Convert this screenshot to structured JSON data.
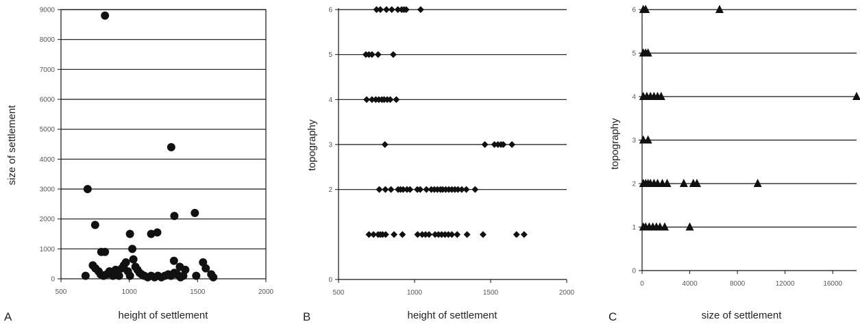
{
  "panel_letters": [
    "A",
    "B",
    "C"
  ],
  "chart_data": [
    {
      "type": "scatter",
      "panel": "A",
      "xlabel": "height of settlement",
      "ylabel": "size of settlement",
      "xlim": [
        500,
        2000
      ],
      "ylim": [
        0,
        9000
      ],
      "xticks": [
        500,
        1000,
        1500,
        2000
      ],
      "yticks": [
        0,
        1000,
        2000,
        3000,
        4000,
        5000,
        6000,
        7000,
        8000,
        9000
      ],
      "xtick_labels": [
        "500",
        "1000",
        "1500",
        "2000"
      ],
      "ytick_labels": [
        "0",
        "1000",
        "2000",
        "3000",
        "4000",
        "5000",
        "6000",
        "7000",
        "8000",
        "9000"
      ],
      "grid": "horizontal",
      "marker": "circle",
      "points": [
        [
          822,
          8800
        ],
        [
          1307,
          4400
        ],
        [
          695,
          3000
        ],
        [
          750,
          1800
        ],
        [
          1005,
          1500
        ],
        [
          1160,
          1500
        ],
        [
          1330,
          2100
        ],
        [
          1480,
          2200
        ],
        [
          1022,
          1000
        ],
        [
          1205,
          1550
        ],
        [
          1327,
          600
        ],
        [
          1410,
          300
        ],
        [
          1540,
          550
        ],
        [
          1560,
          350
        ],
        [
          1370,
          400
        ],
        [
          795,
          900
        ],
        [
          822,
          900
        ],
        [
          733,
          450
        ],
        [
          752,
          350
        ],
        [
          775,
          250
        ],
        [
          790,
          150
        ],
        [
          812,
          100
        ],
        [
          835,
          150
        ],
        [
          855,
          250
        ],
        [
          880,
          100
        ],
        [
          900,
          300
        ],
        [
          925,
          100
        ],
        [
          945,
          350
        ],
        [
          960,
          450
        ],
        [
          975,
          550
        ],
        [
          990,
          250
        ],
        [
          1005,
          100
        ],
        [
          1030,
          650
        ],
        [
          1045,
          400
        ],
        [
          1060,
          300
        ],
        [
          1075,
          200
        ],
        [
          1090,
          150
        ],
        [
          1110,
          100
        ],
        [
          1135,
          50
        ],
        [
          1160,
          100
        ],
        [
          1185,
          50
        ],
        [
          1210,
          100
        ],
        [
          1235,
          50
        ],
        [
          1260,
          100
        ],
        [
          1285,
          150
        ],
        [
          1305,
          100
        ],
        [
          1330,
          200
        ],
        [
          1350,
          150
        ],
        [
          1375,
          50
        ],
        [
          1395,
          100
        ],
        [
          1490,
          100
        ],
        [
          1600,
          150
        ],
        [
          1615,
          50
        ],
        [
          680,
          100
        ]
      ]
    },
    {
      "type": "scatter",
      "panel": "B",
      "xlabel": "height of settlement",
      "ylabel": "topography",
      "xlim": [
        500,
        2000
      ],
      "ylim": [
        0,
        6
      ],
      "xticks": [
        500,
        1000,
        1500,
        2000
      ],
      "yticks": [
        0,
        2,
        3,
        4,
        5,
        6
      ],
      "xtick_labels": [
        "500",
        "1000",
        "1500",
        "2000"
      ],
      "ytick_labels": [
        "0",
        "2",
        "3",
        "4",
        "5",
        "6"
      ],
      "grid": "horizontal",
      "marker": "diamond",
      "points": [
        [
          750,
          6
        ],
        [
          775,
          6
        ],
        [
          815,
          6
        ],
        [
          850,
          6
        ],
        [
          890,
          6
        ],
        [
          915,
          6
        ],
        [
          930,
          6
        ],
        [
          945,
          6
        ],
        [
          1040,
          6
        ],
        [
          680,
          5
        ],
        [
          700,
          5
        ],
        [
          720,
          5
        ],
        [
          760,
          5
        ],
        [
          860,
          5
        ],
        [
          685,
          4
        ],
        [
          720,
          4
        ],
        [
          745,
          4
        ],
        [
          765,
          4
        ],
        [
          785,
          4
        ],
        [
          800,
          4
        ],
        [
          820,
          4
        ],
        [
          840,
          4
        ],
        [
          880,
          4
        ],
        [
          805,
          3
        ],
        [
          1462,
          3
        ],
        [
          1525,
          3
        ],
        [
          1548,
          3
        ],
        [
          1568,
          3
        ],
        [
          1583,
          3
        ],
        [
          1640,
          3
        ],
        [
          768,
          2
        ],
        [
          808,
          2
        ],
        [
          845,
          2
        ],
        [
          892,
          2
        ],
        [
          908,
          2
        ],
        [
          925,
          2
        ],
        [
          950,
          2
        ],
        [
          970,
          2
        ],
        [
          1018,
          2
        ],
        [
          1037,
          2
        ],
        [
          1078,
          2
        ],
        [
          1110,
          2
        ],
        [
          1130,
          2
        ],
        [
          1150,
          2
        ],
        [
          1170,
          2
        ],
        [
          1185,
          2
        ],
        [
          1205,
          2
        ],
        [
          1225,
          2
        ],
        [
          1245,
          2
        ],
        [
          1265,
          2
        ],
        [
          1285,
          2
        ],
        [
          1310,
          2
        ],
        [
          1340,
          2
        ],
        [
          1398,
          2
        ],
        [
          700,
          1
        ],
        [
          730,
          1
        ],
        [
          760,
          1
        ],
        [
          775,
          1
        ],
        [
          790,
          1
        ],
        [
          810,
          1
        ],
        [
          865,
          1
        ],
        [
          920,
          1
        ],
        [
          1020,
          1
        ],
        [
          1050,
          1
        ],
        [
          1072,
          1
        ],
        [
          1095,
          1
        ],
        [
          1135,
          1
        ],
        [
          1157,
          1
        ],
        [
          1178,
          1
        ],
        [
          1200,
          1
        ],
        [
          1222,
          1
        ],
        [
          1245,
          1
        ],
        [
          1280,
          1
        ],
        [
          1345,
          1
        ],
        [
          1450,
          1
        ],
        [
          1670,
          1
        ],
        [
          1720,
          1
        ]
      ]
    },
    {
      "type": "scatter",
      "panel": "C",
      "xlabel": "size of settlement",
      "ylabel": "topography",
      "xlim": [
        0,
        18000
      ],
      "ylim": [
        0,
        6
      ],
      "xticks": [
        0,
        4000,
        8000,
        12000,
        16000
      ],
      "yticks": [
        0,
        1,
        2,
        3,
        4,
        5,
        6
      ],
      "xtick_labels": [
        "0",
        "4000",
        "8000",
        "12000",
        "16000"
      ],
      "ytick_labels": [
        "0",
        "1",
        "2",
        "3",
        "4",
        "5",
        "6"
      ],
      "grid": "horizontal",
      "marker": "triangle",
      "points": [
        [
          100,
          6
        ],
        [
          300,
          6
        ],
        [
          6500,
          6
        ],
        [
          100,
          5
        ],
        [
          300,
          5
        ],
        [
          500,
          5
        ],
        [
          100,
          4
        ],
        [
          400,
          4
        ],
        [
          700,
          4
        ],
        [
          1000,
          4
        ],
        [
          1300,
          4
        ],
        [
          1600,
          4
        ],
        [
          18000,
          4
        ],
        [
          100,
          3
        ],
        [
          500,
          3
        ],
        [
          100,
          2
        ],
        [
          300,
          2
        ],
        [
          500,
          2
        ],
        [
          700,
          2
        ],
        [
          1000,
          2
        ],
        [
          1300,
          2
        ],
        [
          1700,
          2
        ],
        [
          2100,
          2
        ],
        [
          3500,
          2
        ],
        [
          4300,
          2
        ],
        [
          4600,
          2
        ],
        [
          9700,
          2
        ],
        [
          100,
          1
        ],
        [
          300,
          1
        ],
        [
          600,
          1
        ],
        [
          900,
          1
        ],
        [
          1200,
          1
        ],
        [
          1500,
          1
        ],
        [
          1900,
          1
        ],
        [
          4000,
          1
        ]
      ]
    }
  ]
}
